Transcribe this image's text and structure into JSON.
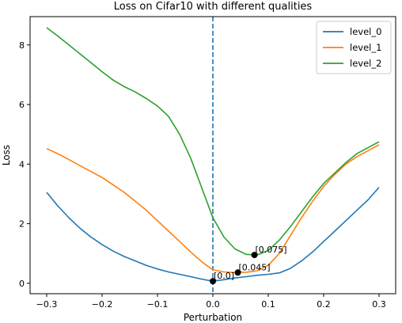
{
  "chart_data": {
    "type": "line",
    "title": "Loss on Cifar10 with different qualities",
    "xlabel": "Perturbation",
    "ylabel": "Loss",
    "xlim": [
      -0.33,
      0.33
    ],
    "ylim": [
      -0.35,
      8.95
    ],
    "xticks": [
      -0.3,
      -0.2,
      -0.1,
      0.0,
      0.1,
      0.2,
      0.3
    ],
    "xtick_labels": [
      "−0.3",
      "−0.2",
      "−0.1",
      "0.0",
      "0.1",
      "0.2",
      "0.3"
    ],
    "yticks": [
      0,
      2,
      4,
      6,
      8
    ],
    "ytick_labels": [
      "0",
      "2",
      "4",
      "6",
      "8"
    ],
    "grid": false,
    "legend_position": "top-right",
    "vline": {
      "x": 0.0,
      "color": "#1f77b4",
      "style": "dashed"
    },
    "series": [
      {
        "name": "level_0",
        "color": "#1f77b4",
        "x": [
          -0.3,
          -0.28,
          -0.26,
          -0.24,
          -0.22,
          -0.2,
          -0.18,
          -0.16,
          -0.14,
          -0.12,
          -0.1,
          -0.08,
          -0.06,
          -0.04,
          -0.02,
          0.0,
          0.02,
          0.04,
          0.06,
          0.08,
          0.1,
          0.12,
          0.14,
          0.16,
          0.18,
          0.2,
          0.22,
          0.24,
          0.26,
          0.28,
          0.3
        ],
        "y": [
          3.05,
          2.6,
          2.2,
          1.85,
          1.55,
          1.3,
          1.08,
          0.9,
          0.75,
          0.6,
          0.48,
          0.38,
          0.3,
          0.22,
          0.14,
          0.07,
          0.12,
          0.18,
          0.22,
          0.27,
          0.3,
          0.35,
          0.5,
          0.75,
          1.05,
          1.4,
          1.75,
          2.1,
          2.45,
          2.8,
          3.22
        ]
      },
      {
        "name": "level_1",
        "color": "#ff7f0e",
        "x": [
          -0.3,
          -0.28,
          -0.26,
          -0.24,
          -0.22,
          -0.2,
          -0.18,
          -0.16,
          -0.14,
          -0.12,
          -0.1,
          -0.08,
          -0.06,
          -0.04,
          -0.02,
          0.0,
          0.02,
          0.04,
          0.06,
          0.08,
          0.1,
          0.12,
          0.14,
          0.16,
          0.18,
          0.2,
          0.22,
          0.24,
          0.26,
          0.28,
          0.3
        ],
        "y": [
          4.52,
          4.35,
          4.15,
          3.95,
          3.75,
          3.55,
          3.3,
          3.05,
          2.75,
          2.45,
          2.1,
          1.75,
          1.4,
          1.05,
          0.72,
          0.45,
          0.38,
          0.36,
          0.37,
          0.42,
          0.6,
          1.0,
          1.6,
          2.2,
          2.75,
          3.25,
          3.65,
          4.0,
          4.25,
          4.45,
          4.65
        ]
      },
      {
        "name": "level_2",
        "color": "#2ca02c",
        "x": [
          -0.3,
          -0.28,
          -0.26,
          -0.24,
          -0.22,
          -0.2,
          -0.18,
          -0.16,
          -0.14,
          -0.12,
          -0.1,
          -0.08,
          -0.06,
          -0.04,
          -0.02,
          0.0,
          0.02,
          0.04,
          0.06,
          0.08,
          0.1,
          0.12,
          0.14,
          0.16,
          0.18,
          0.2,
          0.22,
          0.24,
          0.26,
          0.28,
          0.3
        ],
        "y": [
          8.58,
          8.3,
          8.0,
          7.7,
          7.4,
          7.1,
          6.82,
          6.6,
          6.42,
          6.2,
          5.95,
          5.6,
          5.0,
          4.2,
          3.2,
          2.2,
          1.55,
          1.15,
          0.97,
          0.95,
          1.1,
          1.45,
          1.9,
          2.4,
          2.9,
          3.35,
          3.7,
          4.05,
          4.35,
          4.55,
          4.75
        ]
      }
    ],
    "annotations": [
      {
        "x": 0.0,
        "y": 0.07,
        "label": "[0.0]"
      },
      {
        "x": 0.045,
        "y": 0.36,
        "label": "[0.045]"
      },
      {
        "x": 0.075,
        "y": 0.95,
        "label": "[0.075]"
      }
    ]
  }
}
